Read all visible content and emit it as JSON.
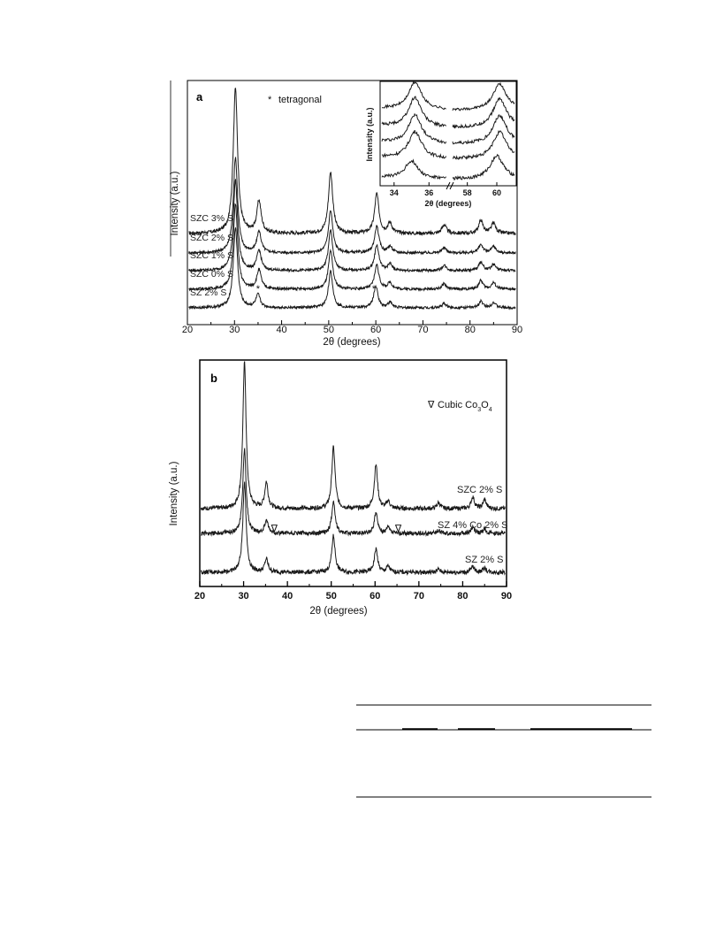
{
  "chart_data": [
    {
      "panel": "a",
      "type": "line",
      "panel_label": "a",
      "xlabel": "2θ (degrees)",
      "ylabel": "Intensity (a.u.)",
      "xlim": [
        20,
        90
      ],
      "xticks": [
        "20",
        "30",
        "40",
        "50",
        "60",
        "70",
        "80",
        "90"
      ],
      "legend": {
        "marker": "*",
        "text": "tetragonal",
        "placement": "top-center"
      },
      "series": [
        {
          "name": "SZC 3% S",
          "peaks": [
            [
              30.2,
              1.0
            ],
            [
              35.2,
              0.22
            ],
            [
              50.4,
              0.42
            ],
            [
              60.2,
              0.27
            ],
            [
              63.0,
              0.07
            ],
            [
              74.5,
              0.06
            ],
            [
              82.3,
              0.09
            ],
            [
              85.0,
              0.07
            ]
          ]
        },
        {
          "name": "SZC 2% S",
          "peaks": [
            [
              30.2,
              0.9
            ],
            [
              35.2,
              0.2
            ],
            [
              50.4,
              0.4
            ],
            [
              60.2,
              0.25
            ],
            [
              63.0,
              0.06
            ],
            [
              74.5,
              0.05
            ],
            [
              82.3,
              0.08
            ],
            [
              85.0,
              0.06
            ]
          ]
        },
        {
          "name": "SZC 1% S",
          "peaks": [
            [
              30.2,
              0.85
            ],
            [
              35.2,
              0.19
            ],
            [
              50.4,
              0.38
            ],
            [
              60.2,
              0.24
            ],
            [
              63.0,
              0.06
            ],
            [
              74.5,
              0.05
            ],
            [
              82.3,
              0.08
            ],
            [
              85.0,
              0.06
            ]
          ]
        },
        {
          "name": "SZC 0% S",
          "peaks": [
            [
              30.2,
              0.8
            ],
            [
              35.2,
              0.18
            ],
            [
              50.4,
              0.36
            ],
            [
              60.2,
              0.23
            ],
            [
              63.0,
              0.06
            ],
            [
              74.5,
              0.05
            ],
            [
              82.3,
              0.08
            ],
            [
              85.0,
              0.06
            ]
          ]
        },
        {
          "name": "SZ 2% S",
          "peaks": [
            [
              30.2,
              0.75
            ],
            [
              35.0,
              0.12
            ],
            [
              50.4,
              0.34
            ],
            [
              60.0,
              0.2
            ],
            [
              63.0,
              0.05
            ],
            [
              74.5,
              0.04
            ],
            [
              82.3,
              0.06
            ],
            [
              85.0,
              0.05
            ]
          ]
        }
      ],
      "tetragonal_markers": [
        35.0,
        59.6
      ],
      "inset": {
        "xlabel": "2θ (degrees)",
        "ylabel": "Intensity (a.u.)",
        "xticks": [
          "34",
          "36",
          "58",
          "60"
        ],
        "broken_axis": true
      }
    },
    {
      "panel": "b",
      "type": "line",
      "panel_label": "b",
      "xlabel": "2θ (degrees)",
      "ylabel": "Intensity (a.u.)",
      "xlim": [
        20,
        90
      ],
      "xticks": [
        "20",
        "30",
        "40",
        "50",
        "60",
        "70",
        "80",
        "90"
      ],
      "legend": {
        "marker": "∇",
        "text_main": "Cubic Co",
        "sub1": "3",
        "text_mid": "O",
        "sub2": "4",
        "placement": "top-right"
      },
      "series": [
        {
          "name": "SZC 2% S",
          "peaks": [
            [
              30.2,
              1.0
            ],
            [
              35.2,
              0.18
            ],
            [
              50.5,
              0.42
            ],
            [
              60.2,
              0.3
            ],
            [
              63.0,
              0.05
            ],
            [
              74.5,
              0.04
            ],
            [
              82.3,
              0.08
            ],
            [
              85.0,
              0.06
            ]
          ]
        },
        {
          "name": "SZ 4% Co 2% S",
          "peaks": [
            [
              30.2,
              0.58
            ],
            [
              35.2,
              0.09
            ],
            [
              50.5,
              0.22
            ],
            [
              60.2,
              0.14
            ],
            [
              63.0,
              0.04
            ],
            [
              74.5,
              0.02
            ],
            [
              82.3,
              0.04
            ],
            [
              85.0,
              0.03
            ]
          ]
        },
        {
          "name": "SZ 2% S",
          "peaks": [
            [
              30.2,
              0.62
            ],
            [
              35.2,
              0.09
            ],
            [
              50.5,
              0.25
            ],
            [
              60.2,
              0.16
            ],
            [
              63.0,
              0.04
            ],
            [
              74.5,
              0.02
            ],
            [
              82.3,
              0.04
            ],
            [
              85.0,
              0.03
            ]
          ]
        }
      ],
      "cubic_markers": [
        37.0,
        65.3
      ]
    }
  ]
}
